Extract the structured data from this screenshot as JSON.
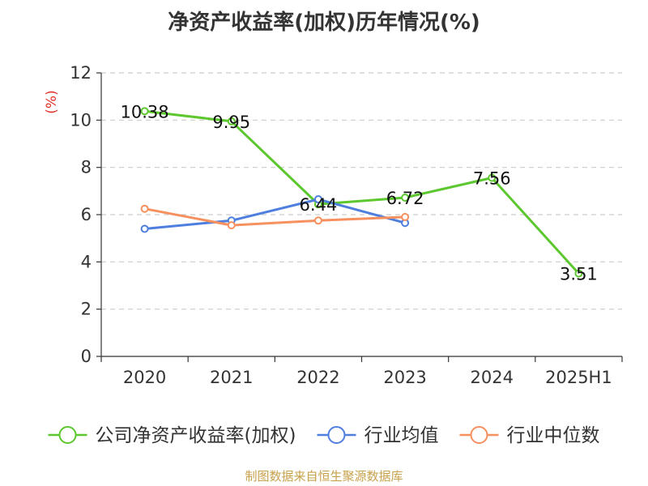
{
  "chart_data": {
    "type": "line",
    "title": "净资产收益率(加权)历年情况(%)",
    "ylabel": "(%)",
    "xlabel": "",
    "categories": [
      "2020",
      "2021",
      "2022",
      "2023",
      "2024",
      "2025H1"
    ],
    "ylim": [
      0,
      12
    ],
    "yticks": [
      0,
      2,
      4,
      6,
      8,
      10,
      12
    ],
    "grid": true,
    "legend_position": "bottom",
    "series": [
      {
        "name": "公司净资产收益率(加权)",
        "color": "#5cc72e",
        "values": [
          10.38,
          9.95,
          6.44,
          6.72,
          7.56,
          3.51
        ],
        "labels": [
          "10.38",
          "9.95",
          "6.44",
          "6.72",
          "7.56",
          "3.51"
        ],
        "show_labels": true
      },
      {
        "name": "行业均值",
        "color": "#4f7fde",
        "values": [
          5.4,
          5.75,
          6.65,
          5.65,
          null,
          null
        ],
        "show_labels": false
      },
      {
        "name": "行业中位数",
        "color": "#f6905f",
        "values": [
          6.25,
          5.55,
          5.75,
          5.9,
          null,
          null
        ],
        "show_labels": false
      }
    ]
  },
  "source": "制图数据来自恒生聚源数据库"
}
